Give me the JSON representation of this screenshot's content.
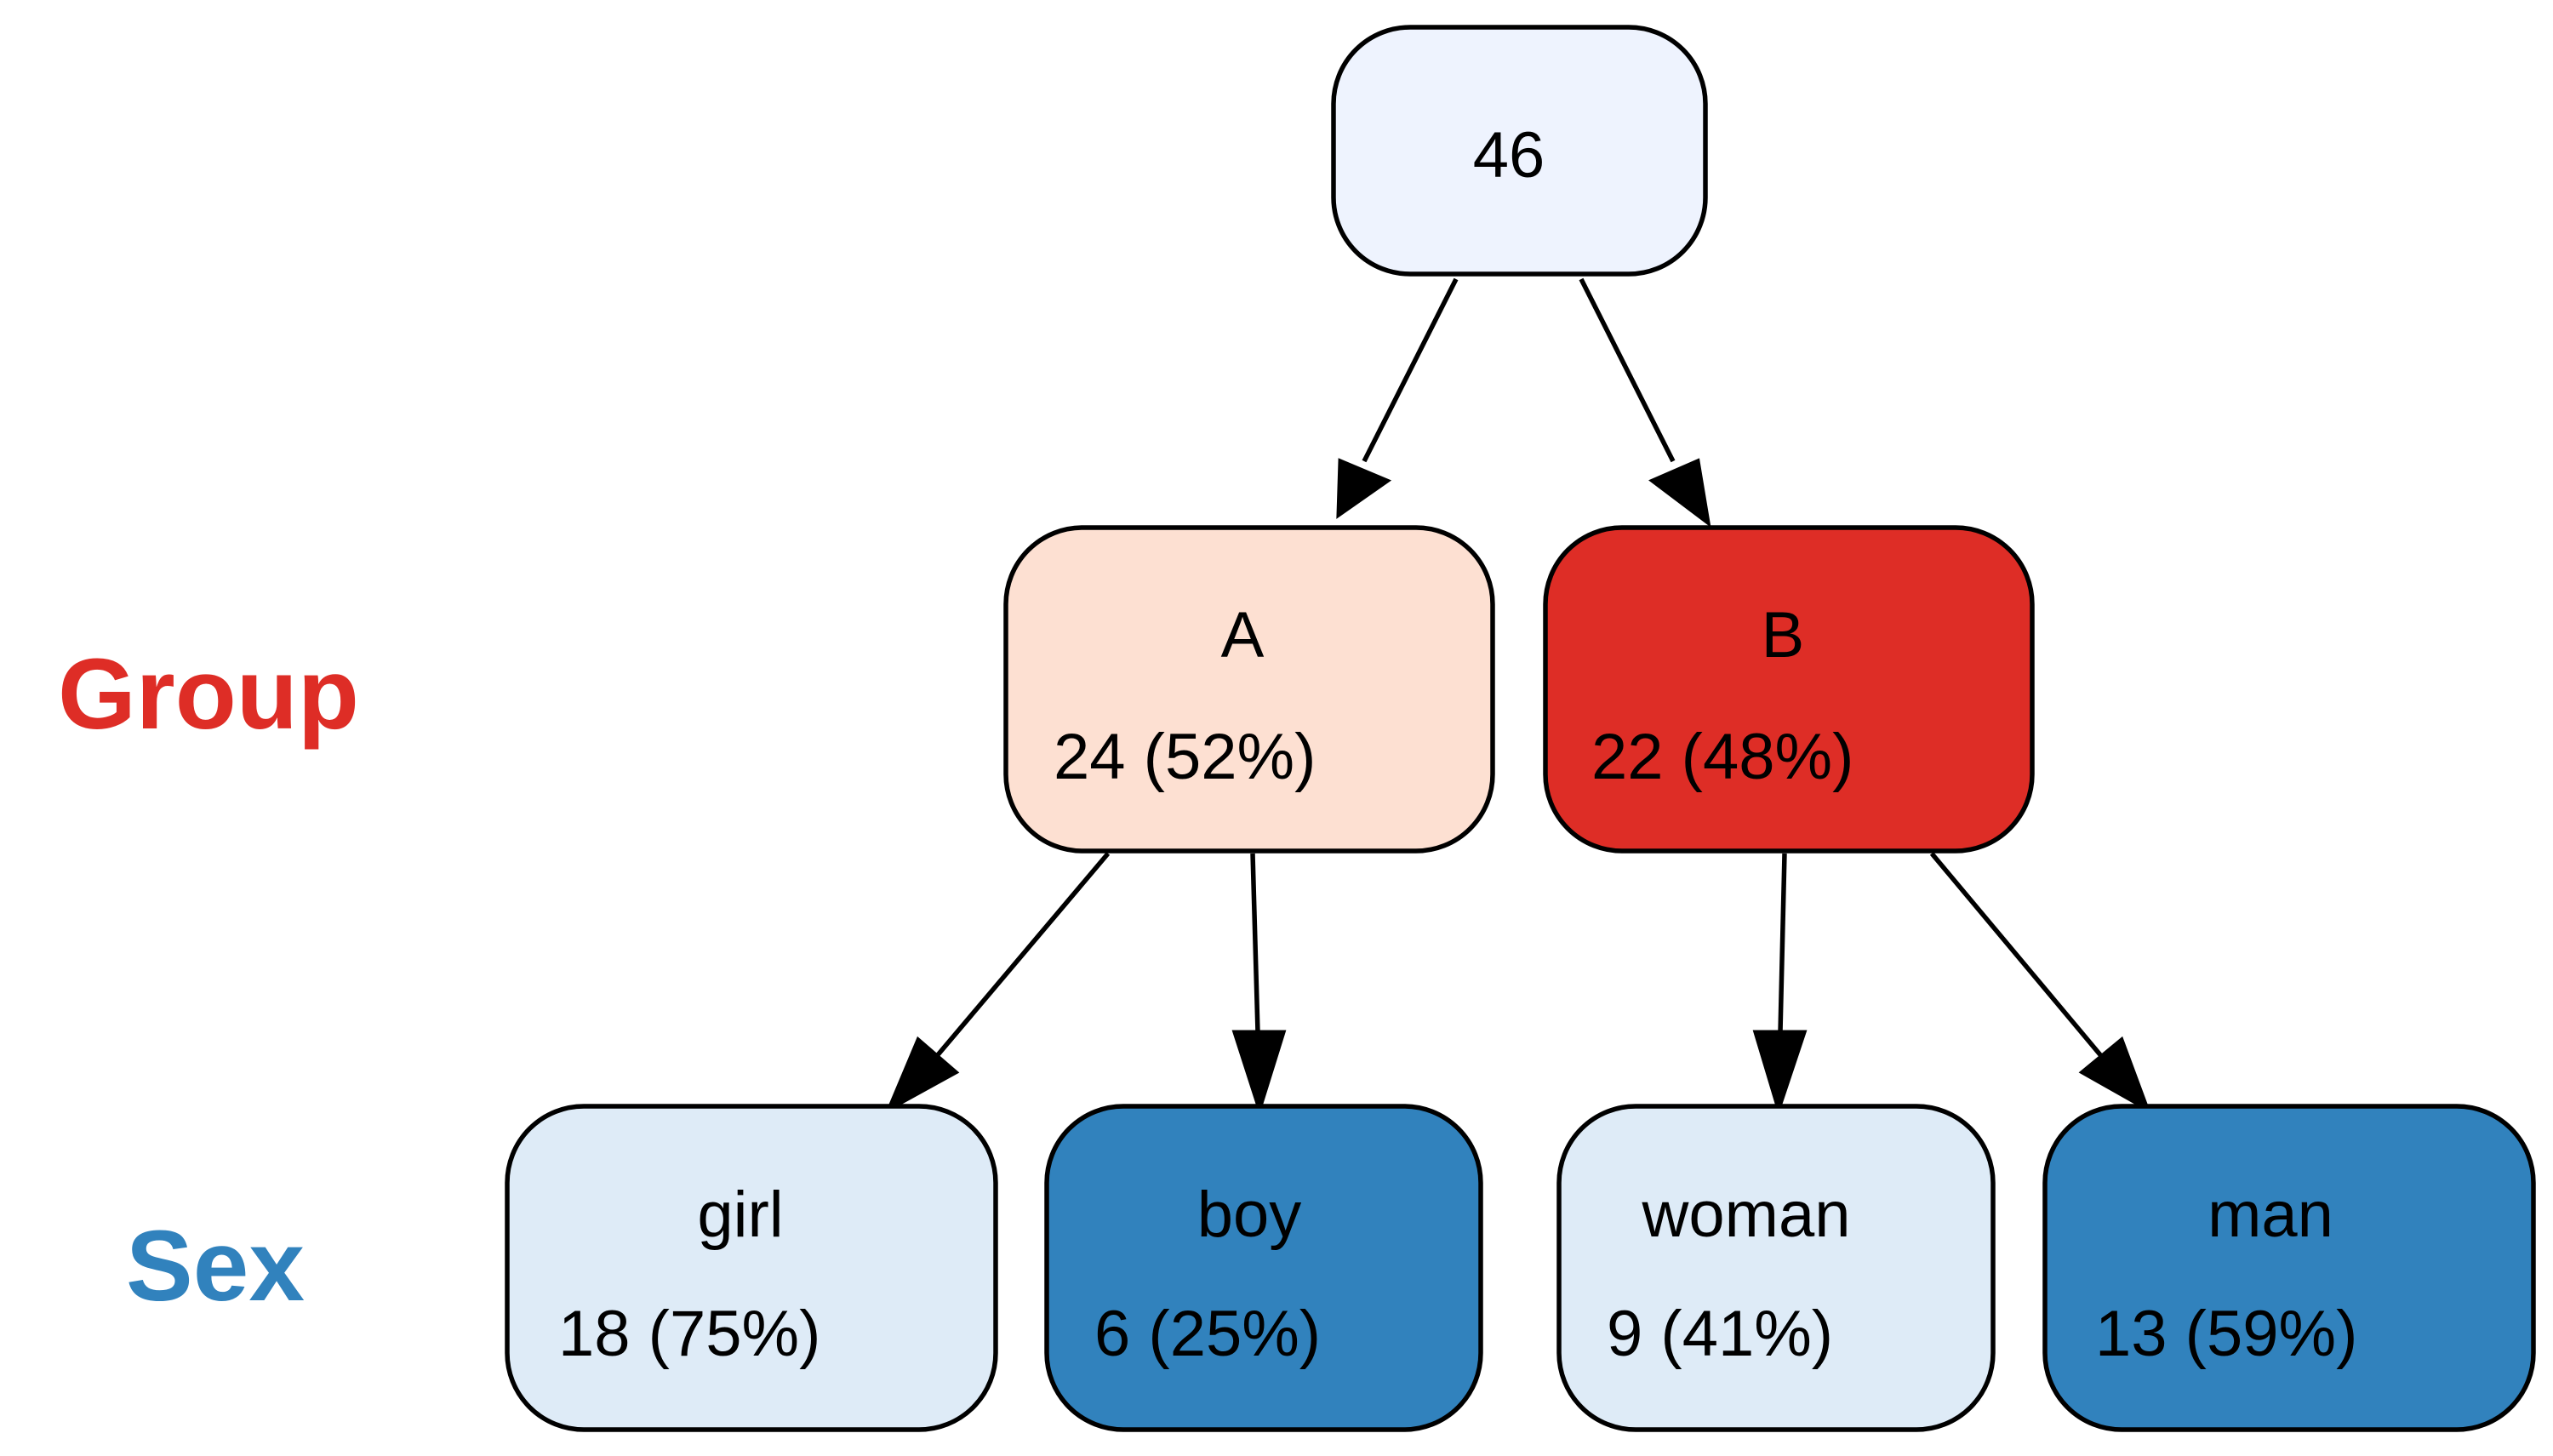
{
  "levels": [
    {
      "label": "Group",
      "color": "#de2d26"
    },
    {
      "label": "Sex",
      "color": "#3182bd"
    }
  ],
  "root": {
    "count": "46",
    "fill": "#eef3fe"
  },
  "groups": [
    {
      "name": "A",
      "summary": "24 (52%)",
      "fill": "#fde0d2"
    },
    {
      "name": "B",
      "summary": "22 (48%)",
      "fill": "#de2d26"
    }
  ],
  "leaves": [
    {
      "parent": "A",
      "name": "girl",
      "summary": "18 (75%)",
      "fill": "#deebf7"
    },
    {
      "parent": "A",
      "name": "boy",
      "summary": "6 (25%)",
      "fill": "#3182bd"
    },
    {
      "parent": "B",
      "name": "woman",
      "summary": "9 (41%)",
      "fill": "#deebf7"
    },
    {
      "parent": "B",
      "name": "man",
      "summary": "13 (59%)",
      "fill": "#3182bd"
    }
  ]
}
